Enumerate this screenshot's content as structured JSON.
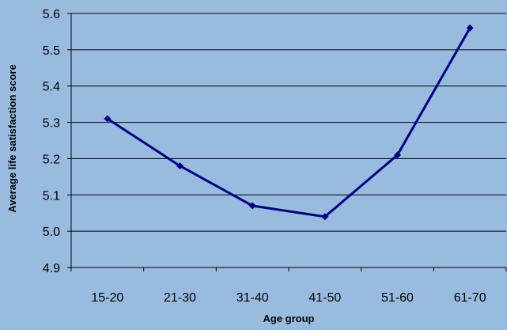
{
  "chart_data": {
    "type": "line",
    "title": "",
    "xlabel": "Age group",
    "ylabel": "Average life satisfaction score",
    "categories": [
      "15-20",
      "21-30",
      "31-40",
      "41-50",
      "51-60",
      "61-70"
    ],
    "series": [
      {
        "values": [
          5.31,
          5.18,
          5.07,
          5.04,
          5.21,
          5.56
        ]
      }
    ],
    "ylim": [
      4.9,
      5.6
    ],
    "yticks": [
      "4.9",
      "5.0",
      "5.1",
      "5.2",
      "5.3",
      "5.4",
      "5.5",
      "5.6"
    ],
    "grid": true,
    "colors": {
      "background": "#99bbe0",
      "line": "#000080",
      "grid": "#000000"
    }
  }
}
